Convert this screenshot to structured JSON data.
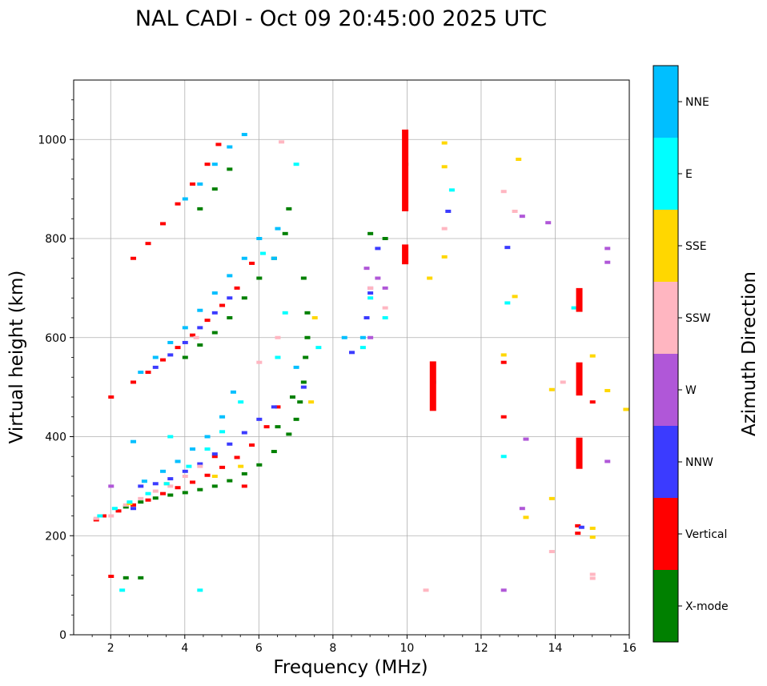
{
  "chart_data": {
    "type": "scatter",
    "title": "NAL CADI - Oct 09 20:45:00 2025 UTC",
    "xlabel": "Frequency (MHz)",
    "ylabel": "Virtual height (km)",
    "xlim": [
      1,
      16
    ],
    "ylim": [
      0,
      1120
    ],
    "xticks": [
      2,
      4,
      6,
      8,
      10,
      12,
      14,
      16
    ],
    "yticks": [
      0,
      200,
      400,
      600,
      800,
      1000
    ],
    "grid": true,
    "colorbar": {
      "label": "Azimuth Direction",
      "categories": [
        {
          "name": "X-mode",
          "color": "#008000"
        },
        {
          "name": "Vertical",
          "color": "#ff0000"
        },
        {
          "name": "NNW",
          "color": "#3b3bff"
        },
        {
          "name": "W",
          "color": "#b057d8"
        },
        {
          "name": "SSW",
          "color": "#ffb6c1"
        },
        {
          "name": "SSE",
          "color": "#ffd700"
        },
        {
          "name": "E",
          "color": "#00ffff"
        },
        {
          "name": "NNE",
          "color": "#00bfff"
        }
      ]
    },
    "traces": [
      {
        "name": "X-mode",
        "points": [
          [
            2.4,
            258
          ],
          [
            2.8,
            268
          ],
          [
            3.2,
            276
          ],
          [
            3.6,
            282
          ],
          [
            4.0,
            287
          ],
          [
            4.4,
            293
          ],
          [
            4.8,
            300
          ],
          [
            5.2,
            311
          ],
          [
            5.6,
            325
          ],
          [
            6.0,
            343
          ],
          [
            6.4,
            370
          ],
          [
            6.8,
            405
          ],
          [
            7.0,
            435
          ],
          [
            7.1,
            470
          ],
          [
            7.2,
            510
          ],
          [
            7.25,
            560
          ],
          [
            7.3,
            600
          ],
          [
            7.3,
            650
          ],
          [
            7.2,
            720
          ],
          [
            4.0,
            560
          ],
          [
            4.4,
            585
          ],
          [
            4.8,
            610
          ],
          [
            5.2,
            640
          ],
          [
            5.6,
            680
          ],
          [
            6.0,
            720
          ],
          [
            6.4,
            760
          ],
          [
            6.7,
            810
          ],
          [
            6.8,
            860
          ],
          [
            4.4,
            860
          ],
          [
            4.8,
            900
          ],
          [
            5.2,
            940
          ],
          [
            2.8,
            115
          ],
          [
            2.4,
            115
          ],
          [
            9.0,
            810
          ],
          [
            9.4,
            800
          ],
          [
            9.95,
            950
          ],
          [
            6.5,
            420
          ],
          [
            6.9,
            480
          ]
        ]
      },
      {
        "name": "Vertical",
        "points": [
          [
            1.6,
            232
          ],
          [
            1.8,
            240
          ],
          [
            2.2,
            250
          ],
          [
            2.6,
            262
          ],
          [
            3.0,
            272
          ],
          [
            3.4,
            285
          ],
          [
            3.8,
            297
          ],
          [
            4.2,
            308
          ],
          [
            4.6,
            322
          ],
          [
            5.0,
            338
          ],
          [
            5.4,
            358
          ],
          [
            5.8,
            383
          ],
          [
            6.2,
            420
          ],
          [
            6.5,
            460
          ],
          [
            2.6,
            510
          ],
          [
            3.0,
            530
          ],
          [
            3.4,
            555
          ],
          [
            3.8,
            580
          ],
          [
            4.2,
            605
          ],
          [
            4.6,
            635
          ],
          [
            5.0,
            665
          ],
          [
            5.4,
            700
          ],
          [
            5.8,
            750
          ],
          [
            2.6,
            760
          ],
          [
            3.0,
            790
          ],
          [
            3.4,
            830
          ],
          [
            3.8,
            870
          ],
          [
            4.2,
            910
          ],
          [
            4.6,
            950
          ],
          [
            4.9,
            990
          ],
          [
            2.0,
            118
          ],
          [
            2.0,
            480
          ],
          [
            12.6,
            550
          ],
          [
            12.6,
            440
          ],
          [
            14.6,
            220
          ],
          [
            14.6,
            205
          ],
          [
            15.0,
            470
          ],
          [
            4.8,
            360
          ],
          [
            5.6,
            300
          ]
        ]
      },
      {
        "name": "NNW",
        "points": [
          [
            2.8,
            300
          ],
          [
            3.2,
            305
          ],
          [
            3.6,
            315
          ],
          [
            4.0,
            330
          ],
          [
            4.4,
            345
          ],
          [
            4.8,
            365
          ],
          [
            5.2,
            385
          ],
          [
            5.6,
            408
          ],
          [
            6.0,
            435
          ],
          [
            6.4,
            460
          ],
          [
            7.2,
            500
          ],
          [
            3.2,
            540
          ],
          [
            3.6,
            565
          ],
          [
            4.0,
            590
          ],
          [
            4.4,
            620
          ],
          [
            4.8,
            650
          ],
          [
            5.2,
            680
          ],
          [
            8.5,
            570
          ],
          [
            8.9,
            640
          ],
          [
            9.2,
            780
          ],
          [
            11.1,
            855
          ],
          [
            12.7,
            782
          ],
          [
            14.7,
            217
          ],
          [
            2.6,
            255
          ],
          [
            9.0,
            690
          ]
        ]
      },
      {
        "name": "W",
        "points": [
          [
            8.9,
            740
          ],
          [
            9.0,
            700
          ],
          [
            9.2,
            720
          ],
          [
            13.1,
            845
          ],
          [
            13.8,
            832
          ],
          [
            15.4,
            752
          ],
          [
            15.4,
            780
          ],
          [
            15.4,
            350
          ],
          [
            13.2,
            395
          ],
          [
            13.1,
            255
          ],
          [
            12.6,
            90
          ],
          [
            2.0,
            300
          ],
          [
            9.4,
            700
          ],
          [
            9.0,
            600
          ]
        ]
      },
      {
        "name": "SSW",
        "points": [
          [
            1.6,
            235
          ],
          [
            2.0,
            240
          ],
          [
            2.4,
            262
          ],
          [
            2.8,
            275
          ],
          [
            3.2,
            290
          ],
          [
            3.6,
            300
          ],
          [
            4.0,
            320
          ],
          [
            4.4,
            340
          ],
          [
            6.0,
            550
          ],
          [
            6.5,
            600
          ],
          [
            9.0,
            700
          ],
          [
            9.4,
            660
          ],
          [
            9.95,
            875
          ],
          [
            9.95,
            1000
          ],
          [
            11.0,
            820
          ],
          [
            12.6,
            895
          ],
          [
            12.9,
            855
          ],
          [
            14.2,
            510
          ],
          [
            13.9,
            168
          ],
          [
            15.0,
            122
          ],
          [
            15.0,
            114
          ],
          [
            10.5,
            90
          ],
          [
            6.6,
            995
          ],
          [
            4.3,
            600
          ]
        ]
      },
      {
        "name": "SSE",
        "points": [
          [
            2.5,
            265
          ],
          [
            3.5,
            305
          ],
          [
            4.8,
            320
          ],
          [
            5.5,
            340
          ],
          [
            7.5,
            640
          ],
          [
            7.4,
            470
          ],
          [
            10.6,
            720
          ],
          [
            11.0,
            993
          ],
          [
            11.0,
            945
          ],
          [
            11.0,
            763
          ],
          [
            12.6,
            565
          ],
          [
            13.0,
            960
          ],
          [
            12.9,
            683
          ],
          [
            13.2,
            237
          ],
          [
            13.9,
            275
          ],
          [
            13.9,
            495
          ],
          [
            15.0,
            563
          ],
          [
            15.0,
            197
          ],
          [
            15.0,
            215
          ],
          [
            15.4,
            493
          ],
          [
            15.9,
            455
          ]
        ]
      },
      {
        "name": "E",
        "points": [
          [
            1.7,
            240
          ],
          [
            2.1,
            255
          ],
          [
            2.5,
            268
          ],
          [
            3.0,
            285
          ],
          [
            3.5,
            305
          ],
          [
            4.1,
            340
          ],
          [
            4.6,
            375
          ],
          [
            5.0,
            410
          ],
          [
            5.5,
            470
          ],
          [
            7.0,
            950
          ],
          [
            6.1,
            770
          ],
          [
            6.7,
            650
          ],
          [
            7.6,
            580
          ],
          [
            8.8,
            580
          ],
          [
            9.0,
            680
          ],
          [
            9.4,
            640
          ],
          [
            10.7,
            510
          ],
          [
            11.2,
            898
          ],
          [
            12.6,
            360
          ],
          [
            12.7,
            670
          ],
          [
            14.5,
            660
          ],
          [
            2.3,
            90
          ],
          [
            4.4,
            90
          ],
          [
            6.5,
            560
          ],
          [
            3.6,
            400
          ]
        ]
      },
      {
        "name": "NNE",
        "points": [
          [
            2.9,
            310
          ],
          [
            3.4,
            330
          ],
          [
            3.8,
            350
          ],
          [
            4.2,
            375
          ],
          [
            4.6,
            400
          ],
          [
            5.0,
            440
          ],
          [
            5.3,
            490
          ],
          [
            2.8,
            530
          ],
          [
            3.2,
            560
          ],
          [
            3.6,
            590
          ],
          [
            4.0,
            620
          ],
          [
            4.4,
            655
          ],
          [
            4.8,
            690
          ],
          [
            5.2,
            725
          ],
          [
            5.6,
            760
          ],
          [
            6.0,
            800
          ],
          [
            6.5,
            820
          ],
          [
            4.0,
            880
          ],
          [
            4.4,
            910
          ],
          [
            4.8,
            950
          ],
          [
            5.2,
            985
          ],
          [
            5.6,
            1010
          ],
          [
            6.4,
            760
          ],
          [
            2.6,
            390
          ],
          [
            8.3,
            600
          ],
          [
            8.8,
            600
          ],
          [
            7.0,
            540
          ]
        ]
      }
    ],
    "bars": [
      {
        "name": "Vertical",
        "freq": 9.95,
        "h_from": 855,
        "h_to": 1020
      },
      {
        "name": "Vertical",
        "freq": 9.95,
        "h_from": 748,
        "h_to": 788
      },
      {
        "name": "Vertical",
        "freq": 10.7,
        "h_from": 452,
        "h_to": 552
      },
      {
        "name": "Vertical",
        "freq": 14.65,
        "h_from": 652,
        "h_to": 700
      },
      {
        "name": "Vertical",
        "freq": 14.65,
        "h_from": 483,
        "h_to": 550
      },
      {
        "name": "Vertical",
        "freq": 14.65,
        "h_from": 335,
        "h_to": 398
      }
    ]
  }
}
